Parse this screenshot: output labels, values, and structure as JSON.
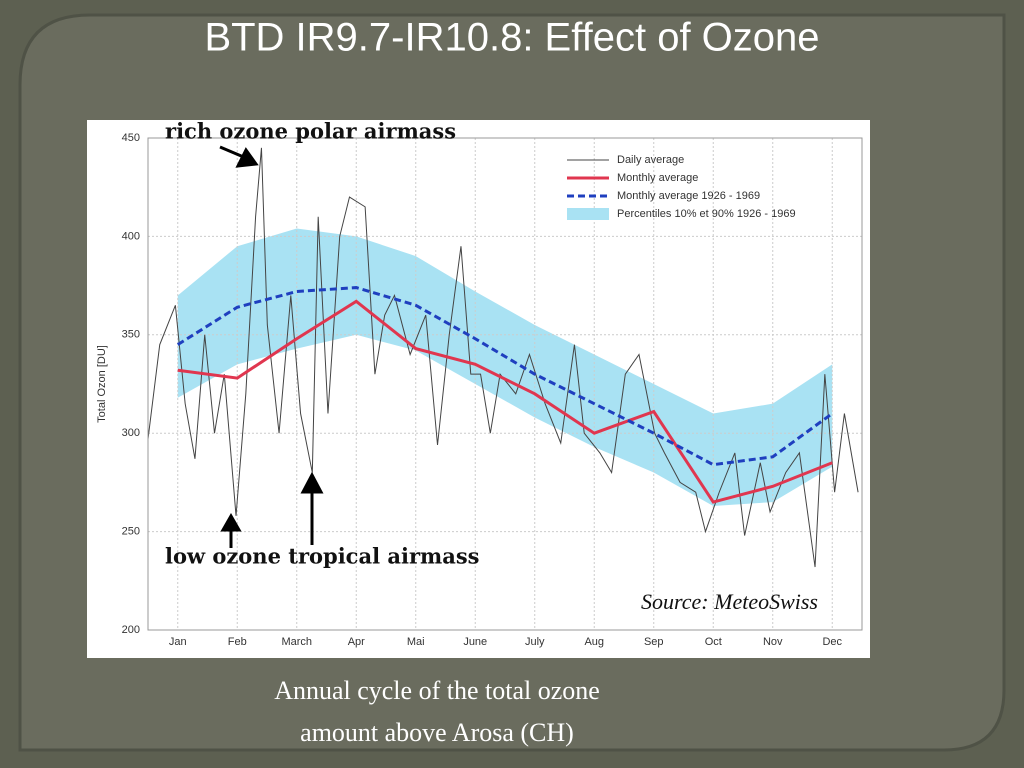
{
  "slide_title": "BTD IR9.7-IR10.8: Effect of Ozone",
  "caption": [
    "Annual cycle of the total ozone",
    "amount above Arosa (CH)"
  ],
  "chart_data": {
    "type": "line",
    "ylabel": "Total Ozon [DU]",
    "categories": [
      "Jan",
      "Feb",
      "March",
      "Apr",
      "Mai",
      "June",
      "July",
      "Aug",
      "Sep",
      "Oct",
      "Nov",
      "Dec"
    ],
    "ylim": [
      200,
      450
    ],
    "yticks": [
      200,
      250,
      300,
      350,
      400,
      450
    ],
    "xlim": [
      0,
      365
    ],
    "grid": true,
    "legend": "top-right",
    "series": [
      {
        "name": "Daily average",
        "color": "#444444",
        "x": [
          0,
          6,
          14,
          19,
          24,
          29,
          34,
          39,
          45,
          50,
          55,
          58,
          61,
          67,
          73,
          78,
          84,
          87,
          92,
          98,
          103,
          111,
          116,
          121,
          126,
          134,
          142,
          148,
          154,
          160,
          165,
          170,
          175,
          180,
          188,
          195,
          203,
          211,
          218,
          223,
          231,
          237,
          244,
          251,
          259,
          264,
          272,
          280,
          285,
          292,
          300,
          305,
          313,
          318,
          326,
          333,
          341,
          346,
          351,
          356,
          363
        ],
        "values": [
          297,
          345,
          365,
          315,
          287,
          350,
          300,
          330,
          258,
          320,
          410,
          445,
          355,
          300,
          370,
          310,
          280,
          410,
          310,
          400,
          420,
          415,
          330,
          360,
          370,
          340,
          360,
          294,
          350,
          395,
          330,
          330,
          300,
          330,
          320,
          340,
          315,
          295,
          345,
          300,
          290,
          280,
          330,
          340,
          300,
          290,
          275,
          270,
          250,
          270,
          290,
          248,
          285,
          260,
          280,
          290,
          232,
          330,
          270,
          310,
          270
        ]
      },
      {
        "name": "Monthly average",
        "color": "#e0364f",
        "values": [
          332,
          328,
          348,
          367,
          343,
          335,
          320,
          300,
          311,
          265,
          273,
          285
        ]
      },
      {
        "name": "Monthly average 1926 - 1969",
        "color": "#1f3fbf",
        "dashed": true,
        "values": [
          345,
          364,
          372,
          374,
          365,
          348,
          330,
          315,
          300,
          284,
          288,
          310
        ]
      }
    ],
    "band": {
      "name": "Percentiles 10% et 90% 1926 - 1969",
      "color": "#a9e2f3",
      "low": [
        318,
        335,
        343,
        350,
        342,
        325,
        308,
        293,
        280,
        263,
        265,
        283
      ],
      "high": [
        370,
        395,
        404,
        400,
        390,
        372,
        355,
        340,
        325,
        310,
        315,
        335
      ]
    },
    "annotations": [
      "rich ozone polar airmass",
      "low ozone tropical airmass",
      "Source: MeteoSwiss"
    ]
  }
}
